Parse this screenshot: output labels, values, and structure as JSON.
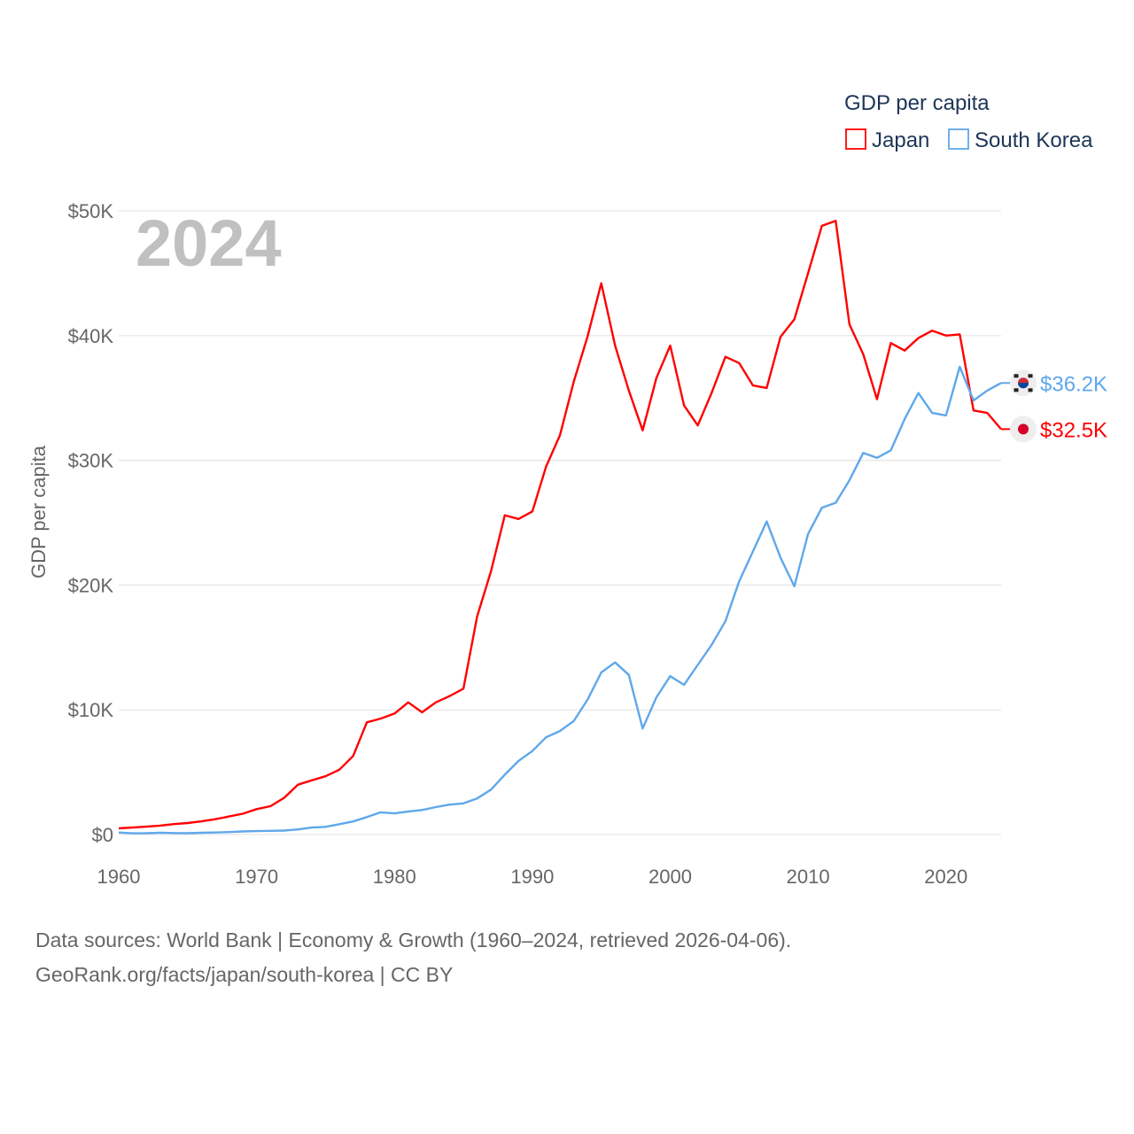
{
  "chart_data": {
    "type": "line",
    "title": "GDP per capita",
    "year_label": "2024",
    "ylabel": "GDP per capita",
    "xlabel": "",
    "xlim": [
      1960,
      2024
    ],
    "ylim": [
      0,
      50000
    ],
    "grid": true,
    "legend_placement": "top-right",
    "xticks": [
      1960,
      1970,
      1980,
      1990,
      2000,
      2010,
      2020
    ],
    "xtick_labels": [
      "1960",
      "1970",
      "1980",
      "1990",
      "2000",
      "2010",
      "2020"
    ],
    "yticks": [
      0,
      10000,
      20000,
      30000,
      40000,
      50000
    ],
    "ytick_labels": [
      "$0",
      "$10K",
      "$20K",
      "$30K",
      "$40K",
      "$50K"
    ],
    "x_start": 1960,
    "series": [
      {
        "name": "Japan",
        "color": "#ff0000",
        "end_label": "$32.5K",
        "flag": "japan-flag-icon",
        "values_k": [
          0.5,
          0.56,
          0.63,
          0.72,
          0.84,
          0.92,
          1.06,
          1.23,
          1.45,
          1.67,
          2.04,
          2.27,
          2.95,
          4.0,
          4.35,
          4.67,
          5.2,
          6.3,
          9.0,
          9.3,
          9.7,
          10.6,
          9.8,
          10.6,
          11.1,
          11.7,
          17.5,
          21.1,
          25.6,
          25.3,
          25.9,
          29.5,
          32.0,
          36.3,
          39.9,
          44.2,
          39.2,
          35.6,
          32.4,
          36.6,
          39.2,
          34.4,
          32.8,
          35.4,
          38.3,
          37.8,
          36.0,
          35.8,
          39.9,
          41.3,
          45.0,
          48.8,
          49.2,
          40.9,
          38.5,
          34.9,
          39.4,
          38.8,
          39.8,
          40.4,
          40.0,
          40.1,
          34.0,
          33.8,
          32.5
        ]
      },
      {
        "name": "South Korea",
        "color": "#5fa8ea",
        "end_label": "$36.2K",
        "flag": "south-korea-flag-icon",
        "values_k": [
          0.16,
          0.1,
          0.11,
          0.15,
          0.12,
          0.11,
          0.14,
          0.16,
          0.2,
          0.25,
          0.28,
          0.3,
          0.32,
          0.41,
          0.56,
          0.62,
          0.83,
          1.05,
          1.4,
          1.78,
          1.7,
          1.85,
          1.97,
          2.2,
          2.4,
          2.5,
          2.9,
          3.6,
          4.8,
          5.9,
          6.7,
          7.8,
          8.3,
          9.1,
          10.8,
          13.0,
          13.8,
          12.8,
          8.5,
          11.0,
          12.7,
          12.0,
          13.6,
          15.2,
          17.1,
          20.3,
          22.7,
          25.1,
          22.2,
          19.9,
          24.1,
          26.2,
          26.6,
          28.4,
          30.6,
          30.2,
          30.8,
          33.3,
          35.4,
          33.8,
          33.6,
          37.5,
          34.8,
          35.6,
          36.2
        ]
      }
    ]
  },
  "sources": {
    "line1": "Data sources: World Bank | Economy & Growth (1960–2024, retrieved 2026-04-06).",
    "line2": "GeoRank.org/facts/japan/south-korea | CC BY"
  }
}
